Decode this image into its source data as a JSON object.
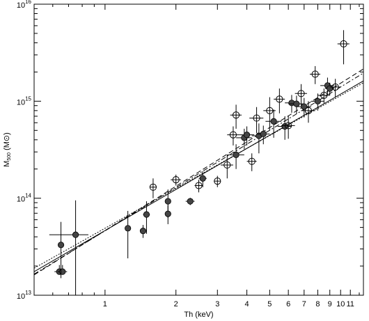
{
  "chart_data": {
    "type": "scatter",
    "title": "",
    "xlabel": "Th (keV)",
    "ylabel": "M500 (M⊙)",
    "ylabel_main": "M",
    "ylabel_sub": "500",
    "ylabel_unit": " (M⊙)",
    "x_scale": "log",
    "y_scale": "log",
    "xlim": [
      0.5,
      12.5
    ],
    "ylim": [
      10000000000000.0,
      1e+16
    ],
    "grid": false,
    "x_tick_labels": [
      "1",
      "2",
      "3",
      "4",
      "5",
      "6",
      "7",
      "8",
      "9",
      "10",
      "11"
    ],
    "x_tick_values": [
      1,
      2,
      3,
      4,
      5,
      6,
      7,
      8,
      9,
      10,
      11
    ],
    "x_minor_ticks": [
      0.6,
      0.7,
      0.8,
      0.9,
      12
    ],
    "y_tick_labels": [
      {
        "base": "10",
        "exp": "13"
      },
      {
        "base": "10",
        "exp": "14"
      },
      {
        "base": "10",
        "exp": "15"
      },
      {
        "base": "10",
        "exp": "16"
      }
    ],
    "y_tick_values": [
      10000000000000.0,
      100000000000000.0,
      1000000000000000.0,
      1e+16
    ],
    "series": [
      {
        "marker": "filled-circle",
        "points": [
          {
            "x": 0.64,
            "y": 17500000000000.0,
            "xerr": [
              0.03,
              0.03
            ],
            "yerr": [
              1000000000000.0,
              3000000000000.0
            ]
          },
          {
            "x": 0.66,
            "y": 17500000000000.0,
            "xerr": [
              0.03,
              0.03
            ],
            "yerr": [
              1000000000000.0,
              3000000000000.0
            ]
          },
          {
            "x": 0.65,
            "y": 33000000000000.0,
            "xerr": [
              0.01,
              0.01
            ],
            "yerr": [
              18000000000000.0,
              24000000000000.0
            ]
          },
          {
            "x": 0.75,
            "y": 42000000000000.0,
            "xerr": [
              0.17,
              0.1
            ],
            "yerr": [
              33000000000000.0,
              53000000000000.0
            ]
          },
          {
            "x": 1.25,
            "y": 49000000000000.0,
            "xerr": [
              0.03,
              0.03
            ],
            "yerr": [
              25000000000000.0,
              25000000000000.0
            ]
          },
          {
            "x": 1.45,
            "y": 46000000000000.0,
            "xerr": [
              0.03,
              0.03
            ],
            "yerr": [
              7000000000000.0,
              7000000000000.0
            ]
          },
          {
            "x": 1.5,
            "y": 68000000000000.0,
            "xerr": [
              0.05,
              0.05
            ],
            "yerr": [
              25000000000000.0,
              25000000000000.0
            ]
          },
          {
            "x": 1.85,
            "y": 93000000000000.0,
            "xerr": [
              0.05,
              0.05
            ],
            "yerr": [
              30000000000000.0,
              30000000000000.0
            ]
          },
          {
            "x": 1.85,
            "y": 69000000000000.0,
            "xerr": [
              0.05,
              0.05
            ],
            "yerr": [
              15000000000000.0,
              15000000000000.0
            ]
          },
          {
            "x": 2.3,
            "y": 93000000000000.0,
            "xerr": [
              0.1,
              0.1
            ],
            "yerr": [
              8000000000000.0,
              8000000000000.0
            ]
          },
          {
            "x": 2.6,
            "y": 160000000000000.0,
            "xerr": [
              0.1,
              0.1
            ],
            "yerr": [
              30000000000000.0,
              30000000000000.0
            ]
          },
          {
            "x": 3.6,
            "y": 280000000000000.0,
            "xerr": [
              0.3,
              0.3
            ],
            "yerr": [
              80000000000000.0,
              80000000000000.0
            ]
          },
          {
            "x": 3.9,
            "y": 420000000000000.0,
            "xerr": [
              0.3,
              0.3
            ],
            "yerr": [
              100000000000000.0,
              100000000000000.0
            ]
          },
          {
            "x": 4.0,
            "y": 450000000000000.0,
            "xerr": [
              0.3,
              0.3
            ],
            "yerr": [
              100000000000000.0,
              100000000000000.0
            ]
          },
          {
            "x": 4.5,
            "y": 440000000000000.0,
            "xerr": [
              0.3,
              0.3
            ],
            "yerr": [
              150000000000000.0,
              150000000000000.0
            ]
          },
          {
            "x": 4.7,
            "y": 460000000000000.0,
            "xerr": [
              0.3,
              0.3
            ],
            "yerr": [
              100000000000000.0,
              100000000000000.0
            ]
          },
          {
            "x": 5.2,
            "y": 620000000000000.0,
            "xerr": [
              0.4,
              0.4
            ],
            "yerr": [
              200000000000000.0,
              200000000000000.0
            ]
          },
          {
            "x": 5.8,
            "y": 550000000000000.0,
            "xerr": [
              0.4,
              0.4
            ],
            "yerr": [
              150000000000000.0,
              150000000000000.0
            ]
          },
          {
            "x": 6.2,
            "y": 960000000000000.0,
            "xerr": [
              0.4,
              0.4
            ],
            "yerr": [
              200000000000000.0,
              200000000000000.0
            ]
          },
          {
            "x": 6.5,
            "y": 940000000000000.0,
            "xerr": [
              0.5,
              0.5
            ],
            "yerr": [
              200000000000000.0,
              200000000000000.0
            ]
          },
          {
            "x": 7.0,
            "y": 880000000000000.0,
            "xerr": [
              0.5,
              0.5
            ],
            "yerr": [
              200000000000000.0,
              200000000000000.0
            ]
          },
          {
            "x": 8.0,
            "y": 1000000000000000.0,
            "xerr": [
              0.5,
              0.5
            ],
            "yerr": [
              200000000000000.0,
              200000000000000.0
            ]
          },
          {
            "x": 8.8,
            "y": 1450000000000000.0,
            "xerr": [
              0.6,
              0.6
            ],
            "yerr": [
              300000000000000.0,
              300000000000000.0
            ]
          },
          {
            "x": 9.0,
            "y": 1350000000000000.0,
            "xerr": [
              0.4,
              0.4
            ],
            "yerr": [
              200000000000000.0,
              200000000000000.0
            ]
          }
        ]
      },
      {
        "marker": "open-circle-cross",
        "points": [
          {
            "x": 1.6,
            "y": 130000000000000.0,
            "xerr": [
              0.05,
              0.05
            ],
            "yerr": [
              30000000000000.0,
              30000000000000.0
            ]
          },
          {
            "x": 2.0,
            "y": 155000000000000.0,
            "xerr": [
              0.1,
              0.1
            ],
            "yerr": [
              20000000000000.0,
              20000000000000.0
            ]
          },
          {
            "x": 2.5,
            "y": 135000000000000.0,
            "xerr": [
              0.1,
              0.1
            ],
            "yerr": [
              20000000000000.0,
              20000000000000.0
            ]
          },
          {
            "x": 3.0,
            "y": 150000000000000.0,
            "xerr": [
              0.1,
              0.1
            ],
            "yerr": [
              20000000000000.0,
              20000000000000.0
            ]
          },
          {
            "x": 3.3,
            "y": 220000000000000.0,
            "xerr": [
              0.2,
              0.2
            ],
            "yerr": [
              60000000000000.0,
              60000000000000.0
            ]
          },
          {
            "x": 3.5,
            "y": 450000000000000.0,
            "xerr": [
              0.2,
              0.2
            ],
            "yerr": [
              100000000000000.0,
              100000000000000.0
            ]
          },
          {
            "x": 3.6,
            "y": 720000000000000.0,
            "xerr": [
              0.2,
              0.2
            ],
            "yerr": [
              200000000000000.0,
              200000000000000.0
            ]
          },
          {
            "x": 4.2,
            "y": 240000000000000.0,
            "xerr": [
              0.2,
              0.2
            ],
            "yerr": [
              50000000000000.0,
              50000000000000.0
            ]
          },
          {
            "x": 4.4,
            "y": 670000000000000.0,
            "xerr": [
              0.3,
              0.3
            ],
            "yerr": [
              200000000000000.0,
              200000000000000.0
            ]
          },
          {
            "x": 5.0,
            "y": 800000000000000.0,
            "xerr": [
              0.3,
              0.3
            ],
            "yerr": [
              300000000000000.0,
              300000000000000.0
            ]
          },
          {
            "x": 5.5,
            "y": 1050000000000000.0,
            "xerr": [
              0.3,
              0.3
            ],
            "yerr": [
              300000000000000.0,
              300000000000000.0
            ]
          },
          {
            "x": 6.0,
            "y": 560000000000000.0,
            "xerr": [
              0.4,
              0.4
            ],
            "yerr": [
              150000000000000.0,
              150000000000000.0
            ]
          },
          {
            "x": 6.8,
            "y": 1200000000000000.0,
            "xerr": [
              0.4,
              0.4
            ],
            "yerr": [
              300000000000000.0,
              300000000000000.0
            ]
          },
          {
            "x": 7.3,
            "y": 800000000000000.0,
            "xerr": [
              0.5,
              0.5
            ],
            "yerr": [
              200000000000000.0,
              200000000000000.0
            ]
          },
          {
            "x": 7.8,
            "y": 1900000000000000.0,
            "xerr": [
              0.4,
              0.4
            ],
            "yerr": [
              400000000000000.0,
              400000000000000.0
            ]
          },
          {
            "x": 8.5,
            "y": 1150000000000000.0,
            "xerr": [
              0.5,
              0.5
            ],
            "yerr": [
              200000000000000.0,
              200000000000000.0
            ]
          },
          {
            "x": 9.5,
            "y": 1400000000000000.0,
            "xerr": [
              0.5,
              0.5
            ],
            "yerr": [
              300000000000000.0,
              300000000000000.0
            ]
          },
          {
            "x": 10.3,
            "y": 3900000000000000.0,
            "xerr": [
              0.6,
              0.6
            ],
            "yerr": [
              1500000000000000.0,
              1500000000000000.0
            ]
          }
        ]
      }
    ],
    "fit_lines": [
      {
        "style": "solid",
        "x": [
          0.5,
          12.5
        ],
        "y": [
          17500000000000.0,
          1620000000000000.0
        ]
      },
      {
        "style": "dashed",
        "x": [
          0.5,
          12.5
        ],
        "y": [
          16200000000000.0,
          2150000000000000.0
        ]
      },
      {
        "style": "dash-dot",
        "x": [
          0.5,
          12.5
        ],
        "y": [
          16500000000000.0,
          1950000000000000.0
        ]
      },
      {
        "style": "dotted",
        "x": [
          0.5,
          12.5
        ],
        "y": [
          19000000000000.0,
          1550000000000000.0
        ]
      }
    ]
  }
}
